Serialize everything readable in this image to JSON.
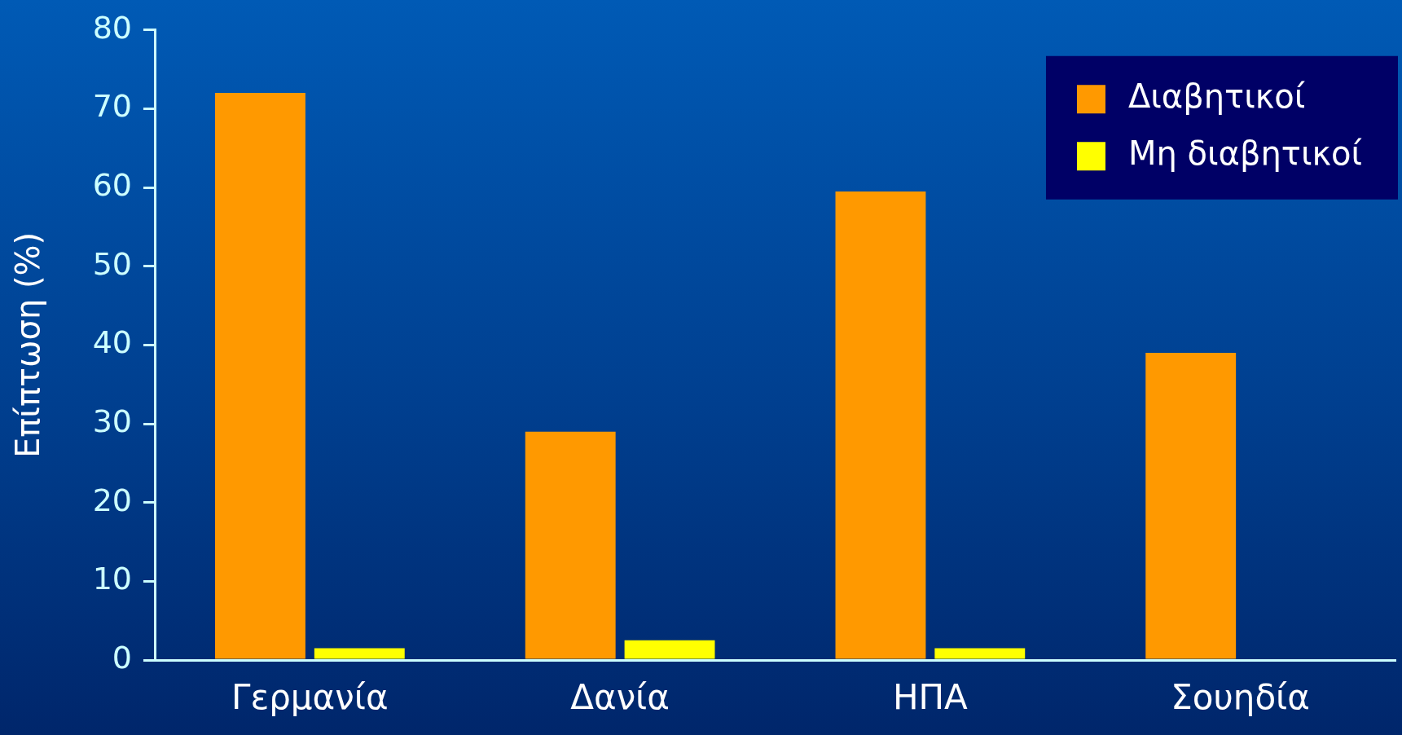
{
  "chart_data": {
    "type": "bar",
    "ylabel": "Επίπτωση (%)",
    "categories": [
      "Γερμανία",
      "Δανία",
      "ΗΠΑ",
      "Σουηδία"
    ],
    "series": [
      {
        "name": "Διαβητικοί",
        "color": "#ff9900",
        "values": [
          72,
          29,
          59.5,
          39
        ]
      },
      {
        "name": "Μη διαβητικοί",
        "color": "#ffff00",
        "values": [
          1.5,
          2.5,
          1.5,
          null
        ]
      }
    ],
    "ylim": [
      0,
      80
    ],
    "yticks": [
      0,
      10,
      20,
      30,
      40,
      50,
      60,
      70,
      80
    ],
    "grid": false,
    "legend": "top right"
  }
}
